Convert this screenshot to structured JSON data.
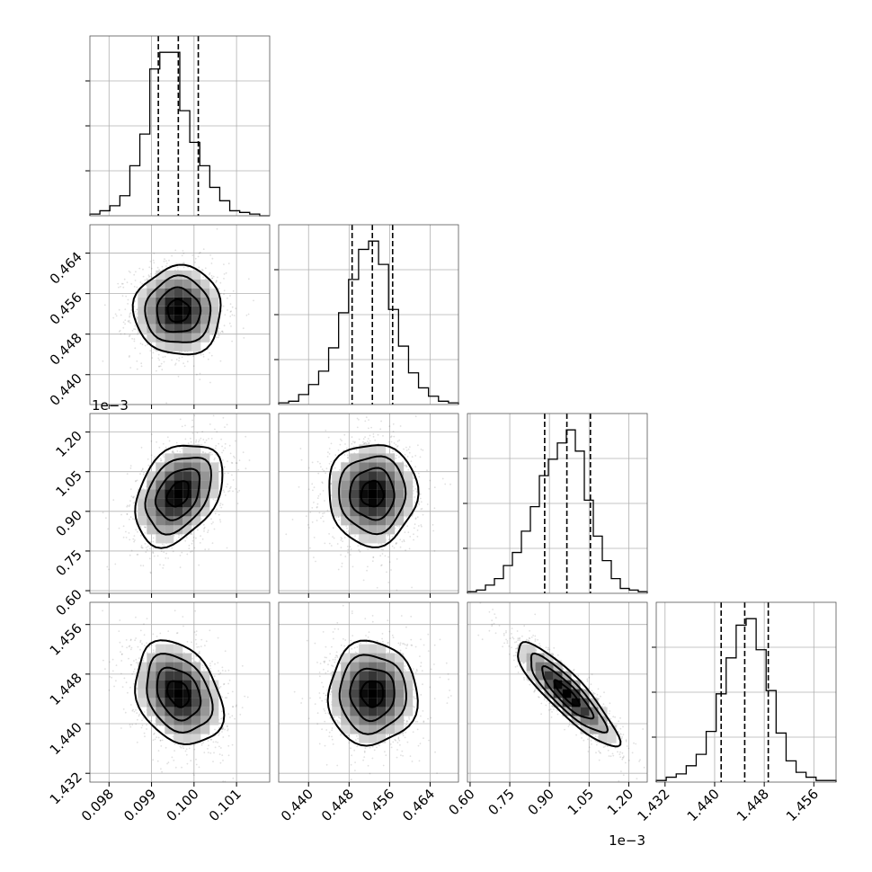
{
  "chart_data": {
    "type": "corner",
    "parameters": [
      {
        "range": [
          0.09755,
          0.10178
        ],
        "ticks": [
          0.098,
          0.099,
          0.1,
          0.101
        ],
        "tick_labels": [
          "0.098",
          "0.099",
          "0.100",
          "0.101"
        ],
        "offset_label": "",
        "quantiles": [
          0.09916,
          0.09963,
          0.1001
        ],
        "hist_edges": [
          0.09755,
          0.10178
        ],
        "hist_counts": [
          1,
          3,
          6,
          12,
          30,
          49,
          88,
          98,
          98,
          63,
          44,
          30,
          17,
          9,
          3,
          2,
          1,
          0
        ]
      },
      {
        "range": [
          0.4341,
          0.4696
        ],
        "ticks": [
          0.44,
          0.448,
          0.456,
          0.464
        ],
        "tick_labels": [
          "0.440",
          "0.448",
          "0.456",
          "0.464"
        ],
        "offset_label": "",
        "quantiles": [
          0.4486,
          0.4526,
          0.4566
        ],
        "hist_edges": [
          0.4341,
          0.4696
        ],
        "hist_counts": [
          1,
          2,
          6,
          12,
          20,
          34,
          55,
          75,
          93,
          98,
          84,
          57,
          35,
          19,
          10,
          5,
          2,
          1
        ]
      },
      {
        "range": [
          0.00059,
          0.00127
        ],
        "ticks": [
          0.0006,
          0.00075,
          0.0009,
          0.00105,
          0.0012
        ],
        "tick_labels": [
          "0.60",
          "0.75",
          "0.90",
          "1.05",
          "1.20"
        ],
        "offset_label": "1e−3",
        "quantiles": [
          0.000882,
          0.000966,
          0.001055
        ],
        "hist_edges": [
          0.00059,
          0.00127
        ],
        "hist_counts": [
          1,
          2,
          5,
          9,
          17,
          25,
          38,
          53,
          72,
          82,
          92,
          100,
          87,
          57,
          35,
          20,
          9,
          3,
          2,
          1
        ]
      },
      {
        "range": [
          1.43058,
          1.45958
        ],
        "ticks": [
          1.432,
          1.44,
          1.448,
          1.456
        ],
        "tick_labels": [
          "1.432",
          "1.440",
          "1.448",
          "1.456"
        ],
        "offset_label": "",
        "quantiles": [
          1.44105,
          1.44485,
          1.44865
        ],
        "hist_edges": [
          1.43058,
          1.45958
        ],
        "hist_counts": [
          1,
          3,
          5,
          10,
          17,
          31,
          54,
          76,
          96,
          100,
          81,
          56,
          30,
          13,
          6,
          3,
          1,
          1
        ]
      }
    ],
    "pairs": [
      {
        "x": 0,
        "y": 1,
        "center": [
          0.09963,
          0.4526
        ],
        "sigma": [
          0.00048,
          0.0041
        ],
        "rho": 0.0
      },
      {
        "x": 0,
        "y": 2,
        "center": [
          0.09963,
          0.000966
        ],
        "sigma": [
          0.00048,
          9e-05
        ],
        "rho": 0.35
      },
      {
        "x": 1,
        "y": 2,
        "center": [
          0.4526,
          0.000966
        ],
        "sigma": [
          0.0041,
          9e-05
        ],
        "rho": 0.0
      },
      {
        "x": 0,
        "y": 3,
        "center": [
          0.09963,
          1.44485
        ],
        "sigma": [
          0.00048,
          0.0039
        ],
        "rho": -0.28
      },
      {
        "x": 1,
        "y": 3,
        "center": [
          0.4526,
          1.44485
        ],
        "sigma": [
          0.0041,
          0.0039
        ],
        "rho": 0.0
      },
      {
        "x": 2,
        "y": 3,
        "center": [
          0.000966,
          1.44485
        ],
        "sigma": [
          9e-05,
          0.0039
        ],
        "rho": -0.88
      }
    ],
    "grid": true
  }
}
